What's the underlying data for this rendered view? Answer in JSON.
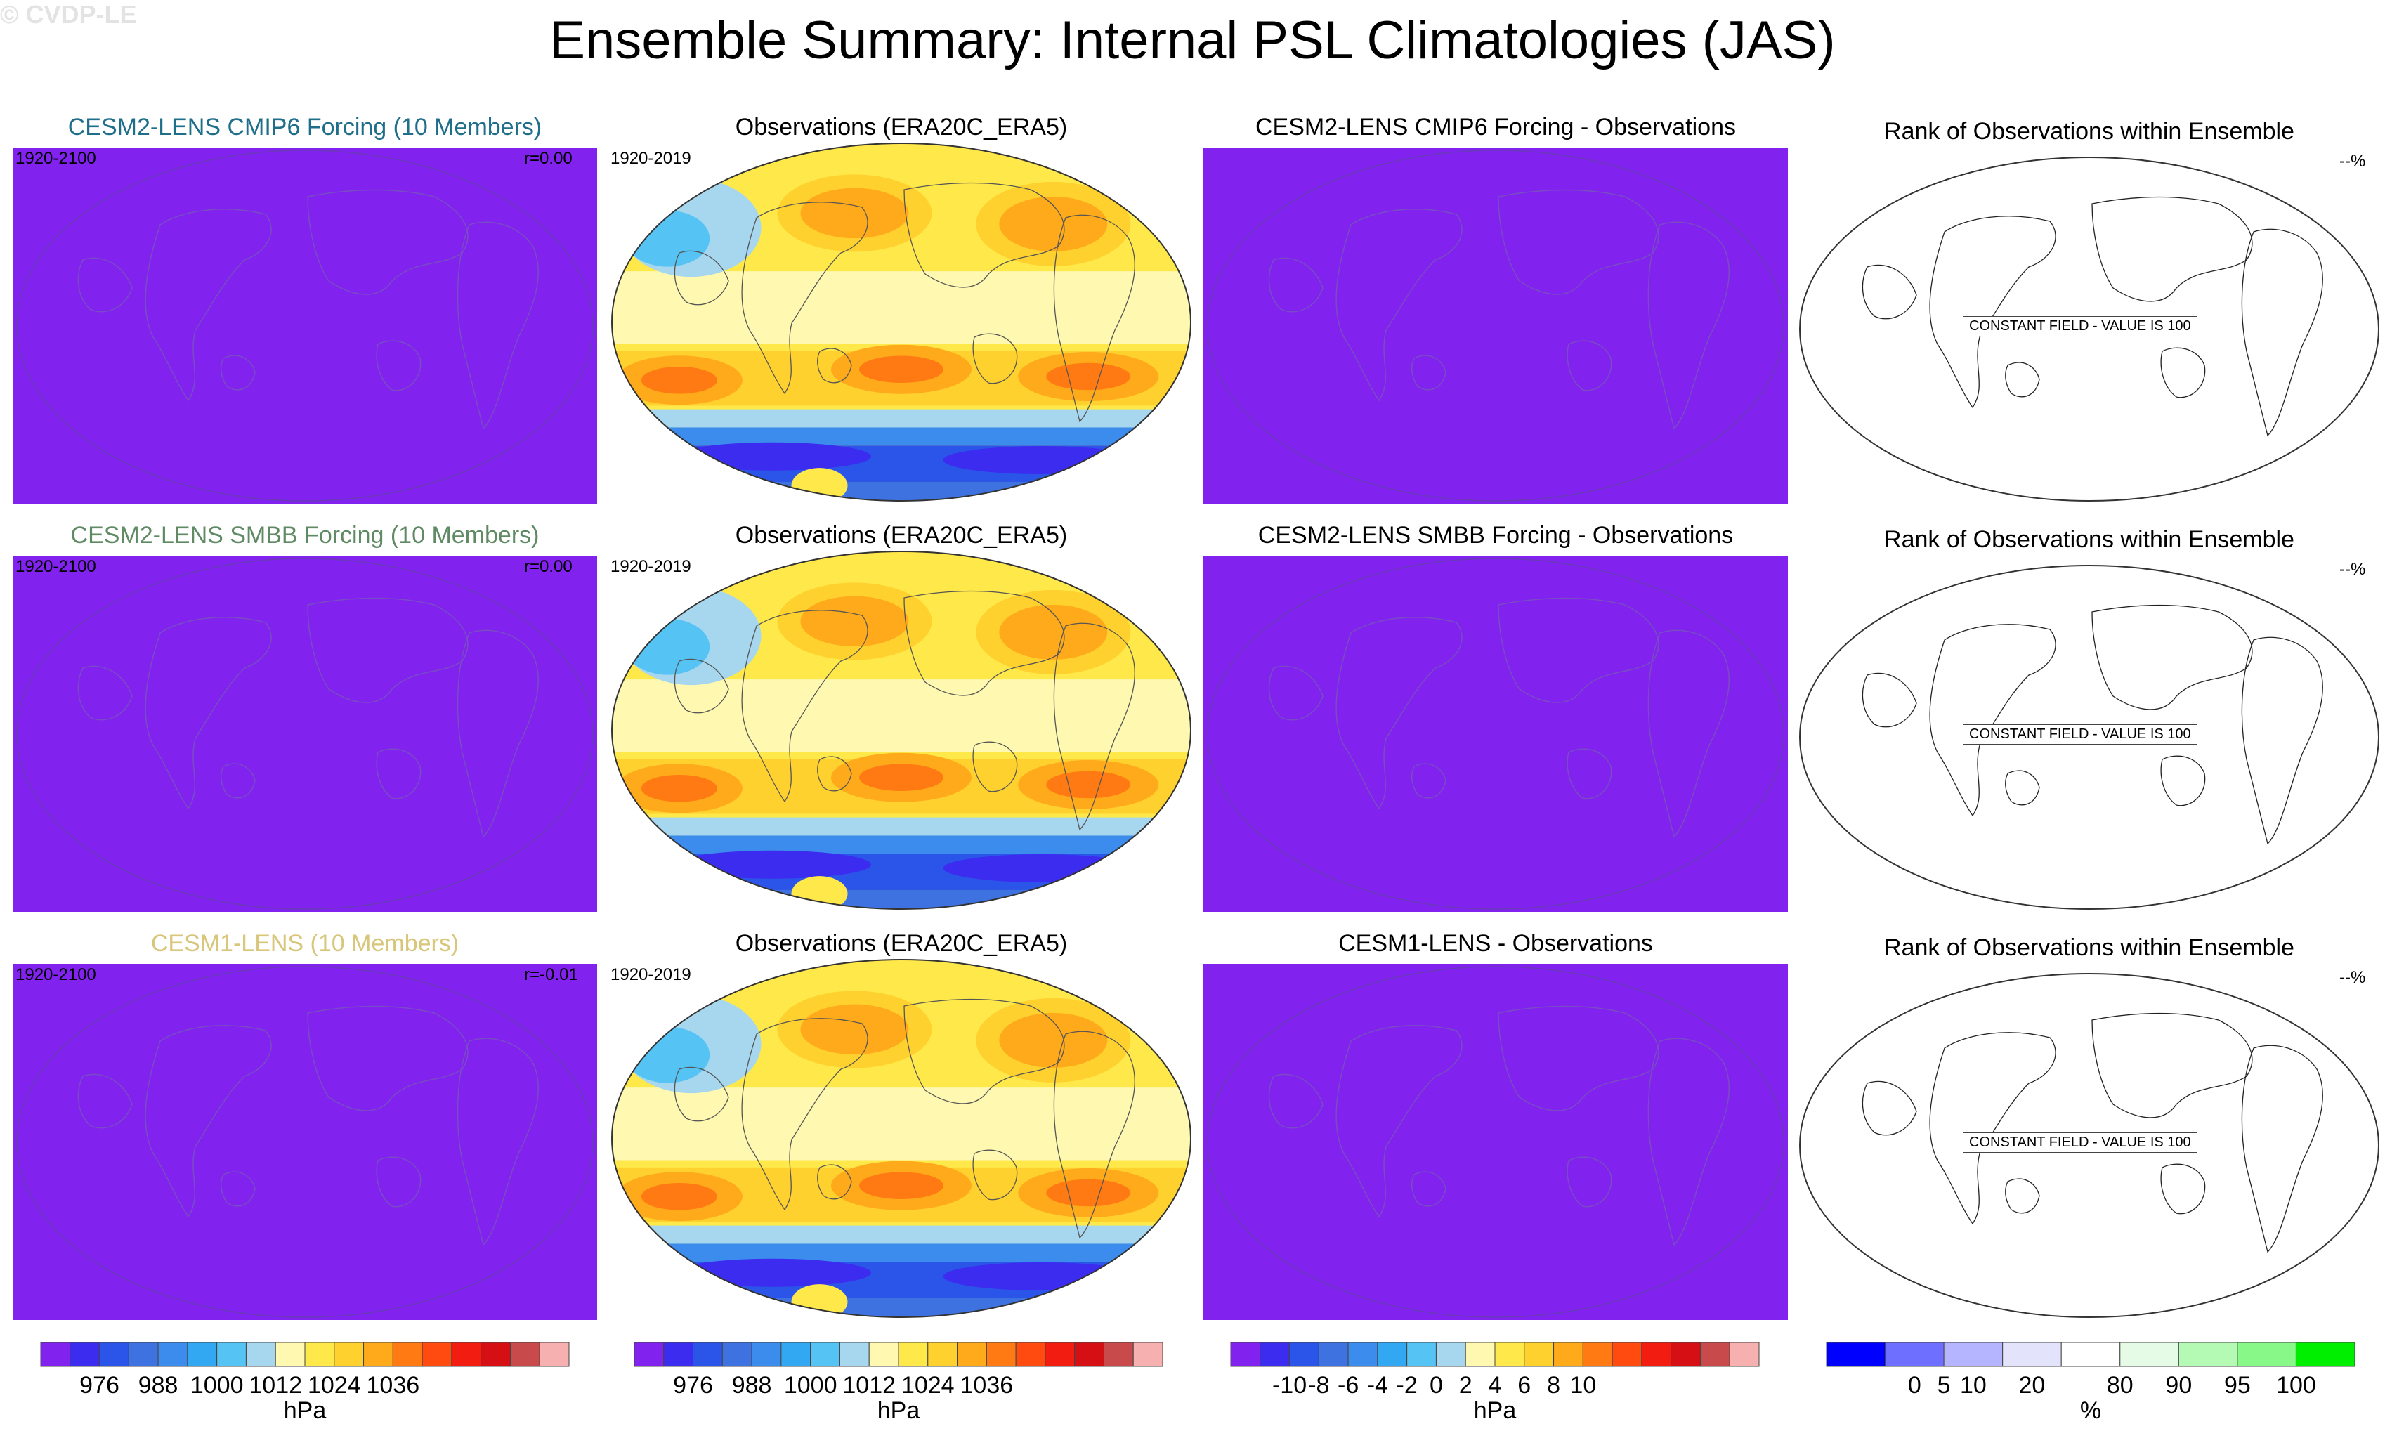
{
  "title": "Ensemble Summary: Internal PSL Climatologies (JAS)",
  "watermark": "© CVDP-LE",
  "rows": [
    {
      "model": {
        "title": "CESM2-LENS CMIP6 Forcing (10 Members)",
        "title_color": "#1f6e8a",
        "period": "1920-2100",
        "r": "r=0.00"
      },
      "obs": {
        "title": "Observations (ERA20C_ERA5)",
        "period": "1920-2019"
      },
      "diff": {
        "title": "CESM2-LENS CMIP6 Forcing - Observations"
      },
      "rank": {
        "title": "Rank of Observations within Ensemble",
        "pct": "--%",
        "note": "CONSTANT FIELD - VALUE IS 100"
      }
    },
    {
      "model": {
        "title": "CESM2-LENS SMBB Forcing (10 Members)",
        "title_color": "#5f8a63",
        "period": "1920-2100",
        "r": "r=0.00"
      },
      "obs": {
        "title": "Observations (ERA20C_ERA5)",
        "period": "1920-2019"
      },
      "diff": {
        "title": "CESM2-LENS SMBB Forcing - Observations"
      },
      "rank": {
        "title": "Rank of Observations within Ensemble",
        "pct": "--%",
        "note": "CONSTANT FIELD - VALUE IS 100"
      }
    },
    {
      "model": {
        "title": "CESM1-LENS (10 Members)",
        "title_color": "#d8c67a",
        "period": "1920-2100",
        "r": "r=-0.01"
      },
      "obs": {
        "title": "Observations (ERA20C_ERA5)",
        "period": "1920-2019"
      },
      "diff": {
        "title": "CESM1-LENS - Observations"
      },
      "rank": {
        "title": "Rank of Observations within Ensemble",
        "pct": "--%",
        "note": "CONSTANT FIELD - VALUE IS 100"
      }
    }
  ],
  "chart_data": {
    "type": "heatmap",
    "title": "Ensemble Summary: Internal PSL Climatologies (JAS)",
    "projection": "robinson-like global maps",
    "constant_fill_color": "#8122ef",
    "colorbars": [
      {
        "name": "psl",
        "unit": "hPa",
        "colors": [
          "#8122ef",
          "#3c2cf0",
          "#2b55e8",
          "#3d72e0",
          "#3c8cee",
          "#32a8f2",
          "#55c3f3",
          "#a6d7ef",
          "#fff8b0",
          "#ffe84a",
          "#ffd12e",
          "#ffaa1a",
          "#ff7a12",
          "#ff4a10",
          "#f21c10",
          "#d60f14",
          "#c84a4a",
          "#f7b0b0"
        ],
        "tick_labels": [
          "976",
          "988",
          "1000",
          "1012",
          "1024",
          "1036"
        ],
        "tick_positions": [
          1,
          3,
          5,
          7,
          9,
          11
        ]
      },
      {
        "name": "psl_obs",
        "unit": "hPa",
        "colors": [
          "#8122ef",
          "#3c2cf0",
          "#2b55e8",
          "#3d72e0",
          "#3c8cee",
          "#32a8f2",
          "#55c3f3",
          "#a6d7ef",
          "#fff8b0",
          "#ffe84a",
          "#ffd12e",
          "#ffaa1a",
          "#ff7a12",
          "#ff4a10",
          "#f21c10",
          "#d60f14",
          "#c84a4a",
          "#f7b0b0"
        ],
        "tick_labels": [
          "976",
          "988",
          "1000",
          "1012",
          "1024",
          "1036"
        ],
        "tick_positions": [
          1,
          3,
          5,
          7,
          9,
          11
        ]
      },
      {
        "name": "difference",
        "unit": "hPa",
        "colors": [
          "#8122ef",
          "#3c2cf0",
          "#2b55e8",
          "#3d72e0",
          "#3c8cee",
          "#32a8f2",
          "#55c3f3",
          "#a6d7ef",
          "#fff8b0",
          "#ffe84a",
          "#ffd12e",
          "#ffaa1a",
          "#ff7a12",
          "#ff4a10",
          "#f21c10",
          "#d60f14",
          "#c84a4a",
          "#f7b0b0"
        ],
        "tick_labels": [
          "-10",
          "-8",
          "-6",
          "-4",
          "-2",
          "0",
          "2",
          "4",
          "6",
          "8",
          "10"
        ],
        "tick_positions": [
          1,
          2,
          3,
          4,
          5,
          6,
          7,
          8,
          9,
          10,
          11
        ]
      },
      {
        "name": "rank",
        "unit": "%",
        "colors": [
          "#0000ff",
          "#6f6fff",
          "#b4b4ff",
          "#e3e3fb",
          "#ffffff",
          "#e6fbe6",
          "#b4f9b4",
          "#88f888",
          "#00ee00"
        ],
        "tick_labels": [
          "0",
          "5",
          "10",
          "20",
          "80",
          "90",
          "95",
          "100"
        ],
        "tick_positions": [
          0.5,
          1,
          1.5,
          2.5,
          4,
          5,
          6,
          7
        ]
      }
    ]
  }
}
